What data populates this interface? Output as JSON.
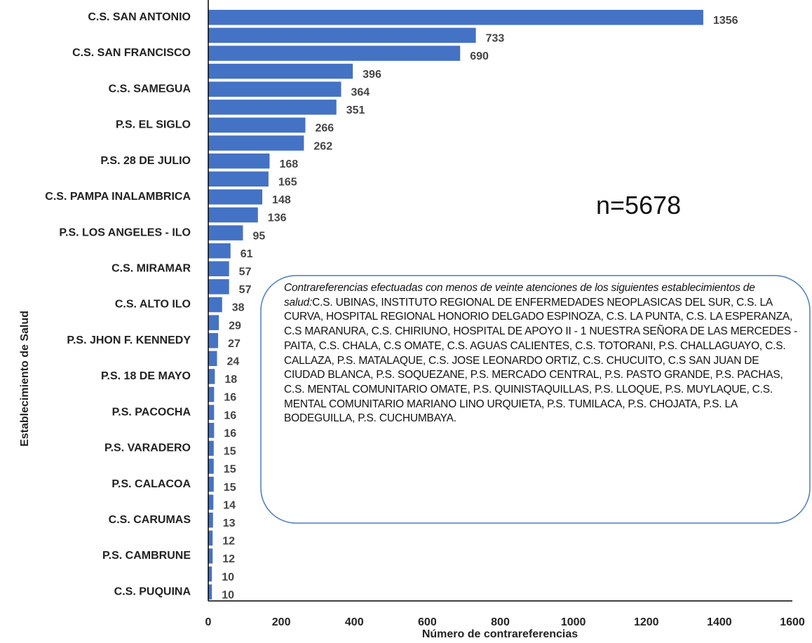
{
  "chart_data": {
    "type": "bar",
    "orientation": "horizontal",
    "categories": [
      "C.S. SAN ANTONIO",
      null,
      "C.S. SAN FRANCISCO",
      null,
      "C.S. SAMEGUA",
      null,
      "P.S. EL SIGLO",
      null,
      "P.S. 28 DE JULIO",
      null,
      "C.S. PAMPA INALAMBRICA",
      null,
      "P.S. LOS ANGELES - ILO",
      null,
      "C.S. MIRAMAR",
      null,
      "C.S. ALTO ILO",
      null,
      "P.S. JHON F. KENNEDY",
      null,
      "P.S. 18 DE MAYO",
      null,
      "P.S. PACOCHA",
      null,
      "P.S. VARADERO",
      null,
      "P.S. CALACOA",
      null,
      "C.S. CARUMAS",
      null,
      "P.S. CAMBRUNE",
      null,
      "C.S. PUQUINA"
    ],
    "values": [
      1356,
      733,
      690,
      396,
      364,
      351,
      266,
      262,
      168,
      165,
      148,
      136,
      95,
      61,
      57,
      57,
      38,
      29,
      27,
      24,
      18,
      16,
      16,
      16,
      15,
      15,
      15,
      14,
      13,
      12,
      12,
      10,
      10
    ],
    "color": "#4472c4",
    "xlim": [
      0,
      1600
    ],
    "xticks": [
      0,
      200,
      400,
      600,
      800,
      1000,
      1200,
      1400,
      1600
    ],
    "x_label": "Número de contrareferencias",
    "y_label": "Establecimiento de Salud",
    "annotations": [
      "n=5678",
      "Contrareferencias efectuadas con menos de veinte atenciones de los siguientes establecimientos de salud:",
      "C.S. UBINAS, INSTITUTO REGIONAL DE ENFERMEDADES NEOPLASICAS DEL SUR, C.S. LA CURVA, HOSPITAL REGIONAL HONORIO DELGADO ESPINOZA, C.S. LA PUNTA, C.S. LA ESPERANZA, C.S MARANURA, C.S. CHIRIUNO, HOSPITAL DE APOYO II - 1 NUESTRA SEÑORA DE LAS MERCEDES - PAITA, C.S. CHALA, C.S OMATE, C.S. AGUAS CALIENTES, C.S. TOTORANI, P.S. CHALLAGUAYO, C.S. CALLAZA, P.S. MATALAQUE, C.S. JOSE LEONARDO ORTIZ, C.S. CHUCUITO, C.S SAN JUAN DE CIUDAD BLANCA, P.S. SOQUEZANE, P.S. MERCADO CENTRAL, P.S. PASTO GRANDE, P.S. PACHAS, C.S. MENTAL COMUNITARIO OMATE, P.S. QUINISTAQUILLAS, P.S. LLOQUE, P.S. MUYLAQUE,  C.S. MENTAL COMUNITARIO MARIANO LINO URQUIETA, P.S. TUMILACA, P.S. CHOJATA, P.S. LA BODEGUILLA, P.S. CUCHUMBAYA."
    ]
  }
}
